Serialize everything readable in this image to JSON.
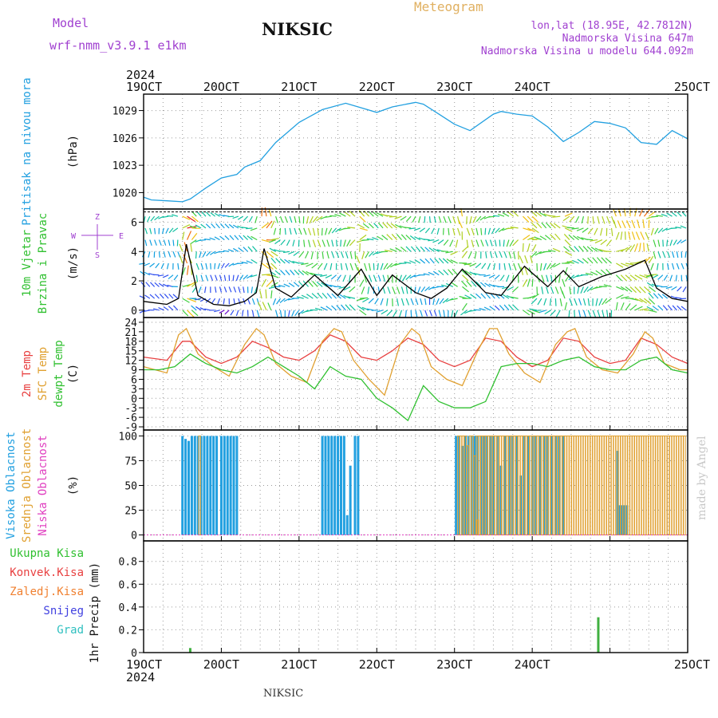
{
  "header": {
    "model_label": "Model",
    "model_name": "wrf-nmm_v3.9.1 e1km",
    "station": "NIKSIC",
    "meteogram": "Meteogram",
    "coords": "lon,lat (18.95E, 42.7812N)",
    "elevation": "Nadmorska Visina 647m",
    "model_elevation": "Nadmorska Visina u modelu 644.092m"
  },
  "footer": {
    "station": "NIKSIC",
    "credit": "made by Angel"
  },
  "colors": {
    "pressure": "#22a0e0",
    "t2m": "#e84040",
    "sfc": "#e0a030",
    "dew": "#30c030",
    "high_cloud": "#22a0e0",
    "mid_cloud": "#e0a030",
    "low_cloud": "#e040c0",
    "rain": "#40b040",
    "wind_speed": "#000000"
  },
  "time_axis": {
    "year": "2024",
    "days": [
      "19OCT",
      "20OCT",
      "21OCT",
      "22OCT",
      "23OCT",
      "24OCT",
      "25OCT"
    ]
  },
  "chart_data": [
    {
      "type": "line",
      "panel": "pressure",
      "ylabel_lines": [
        "Pritisak na nivou mora"
      ],
      "unit": "(hPa)",
      "x_unit": "days since 19OCT 00",
      "yticks": [
        1020,
        1023,
        1026,
        1029
      ],
      "ylim": [
        1018.2,
        1030.8
      ],
      "grid": true,
      "series": [
        {
          "name": "Pritisak na nivou mora",
          "x": [
            0,
            0.1,
            0.3,
            0.5,
            0.6,
            0.8,
            1.0,
            1.2,
            1.3,
            1.5,
            1.7,
            2.0,
            2.3,
            2.6,
            2.8,
            3.0,
            3.2,
            3.5,
            3.6,
            3.8,
            4.0,
            4.2,
            4.5,
            4.6,
            4.8,
            5.0,
            5.2,
            5.4,
            5.6,
            5.8,
            6.0,
            6.2,
            6.4,
            6.6,
            6.8,
            7.0
          ],
          "y": [
            1019.5,
            1019.2,
            1019.1,
            1019.0,
            1019.3,
            1020.5,
            1021.6,
            1022.0,
            1022.8,
            1023.5,
            1025.5,
            1027.7,
            1029.1,
            1029.8,
            1029.3,
            1028.8,
            1029.4,
            1029.9,
            1029.7,
            1028.6,
            1027.5,
            1026.8,
            1028.6,
            1028.9,
            1028.6,
            1028.4,
            1027.2,
            1025.6,
            1026.6,
            1027.8,
            1027.6,
            1027.1,
            1025.5,
            1025.3,
            1026.8,
            1025.9
          ]
        }
      ]
    },
    {
      "type": "line",
      "panel": "wind",
      "ylabel_lines": [
        "10m Vjetar",
        "Brzina i Pravac"
      ],
      "unit": "(m/s)",
      "compass": [
        "Z",
        "W",
        "E",
        "S"
      ],
      "yticks": [
        0,
        2,
        4,
        6
      ],
      "ylim": [
        -0.5,
        6.9
      ],
      "grid": true,
      "series": [
        {
          "name": "Brzina",
          "x": [
            0,
            0.3,
            0.45,
            0.55,
            0.7,
            0.9,
            1.1,
            1.3,
            1.45,
            1.55,
            1.7,
            1.9,
            2.2,
            2.5,
            2.8,
            3.0,
            3.2,
            3.5,
            3.7,
            3.9,
            4.1,
            4.4,
            4.6,
            4.9,
            5.2,
            5.4,
            5.6,
            5.9,
            6.2,
            6.45,
            6.6,
            6.8,
            7.0
          ],
          "y": [
            0.6,
            0.4,
            0.8,
            4.5,
            1.0,
            0.4,
            0.3,
            0.6,
            1.2,
            4.2,
            1.5,
            0.9,
            2.4,
            1.0,
            2.8,
            1.0,
            2.4,
            1.2,
            0.8,
            1.5,
            2.8,
            1.2,
            1.0,
            3.0,
            1.6,
            2.7,
            1.6,
            2.3,
            2.8,
            3.4,
            1.5,
            0.8,
            0.6
          ]
        }
      ]
    },
    {
      "type": "line",
      "panel": "temperature",
      "ylabel_lines": [
        "2m Temp",
        "SFC Temp",
        "dewpt Temp"
      ],
      "unit": "(C)",
      "yticks": [
        -9,
        -6,
        -3,
        0,
        3,
        6,
        9,
        12,
        15,
        18,
        21,
        24
      ],
      "ylim": [
        -10,
        25.5
      ],
      "grid": true,
      "series": [
        {
          "name": "2m Temp",
          "x": [
            0,
            0.3,
            0.5,
            0.6,
            0.8,
            1.0,
            1.2,
            1.4,
            1.6,
            1.8,
            2.0,
            2.2,
            2.4,
            2.6,
            2.8,
            3.0,
            3.2,
            3.4,
            3.6,
            3.8,
            4.0,
            4.2,
            4.4,
            4.6,
            4.8,
            5.0,
            5.2,
            5.4,
            5.6,
            5.8,
            6.0,
            6.2,
            6.4,
            6.6,
            6.8,
            7.0
          ],
          "y": [
            13,
            12,
            18,
            18,
            13,
            11,
            13,
            18,
            16,
            13,
            12,
            15,
            20,
            18,
            13,
            12,
            15,
            19,
            17,
            12,
            10,
            12,
            19,
            18,
            13,
            10,
            12,
            19,
            18,
            13,
            11,
            12,
            19,
            17,
            13,
            11
          ]
        },
        {
          "name": "SFC Temp",
          "x": [
            0,
            0.3,
            0.45,
            0.55,
            0.7,
            0.9,
            1.1,
            1.3,
            1.45,
            1.55,
            1.7,
            1.9,
            2.1,
            2.3,
            2.45,
            2.55,
            2.7,
            2.9,
            3.1,
            3.3,
            3.45,
            3.55,
            3.7,
            3.9,
            4.1,
            4.3,
            4.45,
            4.55,
            4.7,
            4.9,
            5.1,
            5.3,
            5.45,
            5.55,
            5.7,
            5.9,
            6.1,
            6.3,
            6.45,
            6.55,
            6.7,
            6.9,
            7.0
          ],
          "y": [
            10,
            8,
            20,
            22,
            14,
            10,
            7,
            17,
            22,
            20,
            11,
            7,
            5,
            18,
            22,
            21,
            12,
            6,
            1,
            17,
            22,
            20,
            10,
            6,
            4,
            15,
            22,
            22,
            14,
            8,
            5,
            17,
            21,
            22,
            13,
            9,
            8,
            14,
            21,
            19,
            11,
            9,
            9
          ]
        },
        {
          "name": "dewpt Temp",
          "x": [
            0,
            0.2,
            0.4,
            0.6,
            0.8,
            1.0,
            1.2,
            1.4,
            1.6,
            1.8,
            2.0,
            2.2,
            2.4,
            2.6,
            2.8,
            3.0,
            3.2,
            3.4,
            3.6,
            3.8,
            4.0,
            4.2,
            4.4,
            4.6,
            4.8,
            5.0,
            5.2,
            5.4,
            5.6,
            5.8,
            6.0,
            6.2,
            6.4,
            6.6,
            6.8,
            7.0
          ],
          "y": [
            9,
            9,
            10,
            14,
            11,
            9,
            8,
            10,
            13,
            10,
            7,
            3,
            10,
            7,
            6,
            0,
            -3,
            -7,
            4,
            -1,
            -3,
            -3,
            -1,
            10,
            11,
            11,
            10,
            12,
            13,
            10,
            9,
            9,
            12,
            13,
            9,
            8
          ]
        }
      ]
    },
    {
      "type": "bar",
      "panel": "clouds",
      "ylabel_lines": [
        "Visoka Oblacnost",
        "Srednja Oblacnost",
        "Niska Oblacnost"
      ],
      "unit": "(%)",
      "yticks": [
        0,
        25,
        50,
        75,
        100
      ],
      "ylim": [
        -6,
        106
      ],
      "grid": true,
      "series": [
        {
          "name": "Visoka Oblacnost",
          "x": [
            0.5,
            0.54,
            0.58,
            0.62,
            0.66,
            0.7,
            0.74,
            0.78,
            0.82,
            0.86,
            0.9,
            0.94,
            1.0,
            1.04,
            1.08,
            1.12,
            1.16,
            1.2,
            2.3,
            2.34,
            2.38,
            2.42,
            2.46,
            2.5,
            2.54,
            2.58,
            2.62,
            2.66,
            2.72,
            2.76,
            4.02,
            4.06,
            4.1,
            4.14,
            4.18,
            4.22,
            4.26,
            4.3,
            4.34,
            4.38,
            4.42,
            4.46,
            4.5,
            4.55,
            4.6,
            4.65,
            4.7,
            4.75,
            4.8,
            4.85,
            4.9,
            4.95,
            5.0,
            5.05,
            5.1,
            5.15,
            5.2,
            5.25,
            5.3,
            5.35,
            5.4,
            6.1,
            6.12,
            6.15,
            6.18,
            6.22
          ],
          "values": [
            100,
            97,
            95,
            100,
            100,
            100,
            100,
            100,
            100,
            100,
            100,
            100,
            100,
            100,
            100,
            100,
            100,
            100,
            100,
            100,
            100,
            100,
            100,
            100,
            100,
            100,
            20,
            70,
            100,
            100,
            100,
            100,
            90,
            100,
            100,
            100,
            100,
            100,
            100,
            100,
            100,
            100,
            100,
            100,
            70,
            100,
            100,
            100,
            100,
            60,
            100,
            100,
            100,
            100,
            100,
            100,
            100,
            100,
            100,
            100,
            100,
            85,
            30,
            30,
            30,
            30
          ]
        },
        {
          "name": "Srednja Oblacnost",
          "x": [
            0.72,
            4.3,
            4.05,
            4.08,
            4.11,
            4.14,
            4.17,
            4.2,
            4.23,
            4.26,
            4.29,
            4.32,
            4.35,
            4.38,
            4.41,
            4.44,
            4.47,
            4.5,
            4.53,
            4.56,
            4.59,
            4.62,
            4.65,
            4.68,
            4.71,
            4.74,
            4.77,
            4.8,
            4.83,
            4.86,
            4.89,
            4.92,
            4.95,
            4.98,
            5.01,
            5.04,
            5.07,
            5.1,
            5.13,
            5.16,
            5.19,
            5.22,
            5.25,
            5.28,
            5.31,
            5.34,
            5.37,
            5.4,
            5.43,
            5.46,
            5.49,
            5.52,
            5.55,
            5.58,
            5.61,
            5.64,
            5.67,
            5.7,
            5.73,
            5.76,
            5.79,
            5.82,
            5.85,
            5.88,
            5.91,
            5.94,
            5.97,
            6.0,
            6.03,
            6.06,
            6.09,
            6.12,
            6.15,
            6.18,
            6.21,
            6.24,
            6.27,
            6.3,
            6.33,
            6.36,
            6.39,
            6.42,
            6.45,
            6.48,
            6.51,
            6.54,
            6.57,
            6.6,
            6.63,
            6.66,
            6.69,
            6.72,
            6.75,
            6.78,
            6.81,
            6.84,
            6.87,
            6.9,
            6.93,
            6.96
          ],
          "values": [
            100,
            15,
            100,
            100,
            100,
            100,
            90,
            100,
            100,
            80,
            100,
            100,
            100,
            100,
            100,
            100,
            100,
            100,
            100,
            100,
            100,
            100,
            100,
            100,
            100,
            100,
            100,
            100,
            100,
            100,
            100,
            100,
            100,
            100,
            100,
            100,
            100,
            100,
            100,
            100,
            100,
            100,
            100,
            100,
            100,
            100,
            100,
            100,
            100,
            100,
            100,
            100,
            100,
            100,
            100,
            100,
            100,
            100,
            100,
            100,
            100,
            100,
            100,
            100,
            100,
            100,
            100,
            100,
            100,
            100,
            100,
            100,
            100,
            100,
            100,
            100,
            100,
            100,
            100,
            100,
            100,
            100,
            100,
            100,
            100,
            100,
            100,
            100,
            100,
            100,
            100,
            100,
            100,
            100,
            100,
            100,
            100,
            100,
            100,
            100
          ]
        }
      ]
    },
    {
      "type": "bar",
      "panel": "precip",
      "ylabel_lines": [
        "Ukupna Kisa",
        "Konvek.Kisa",
        "Zaledj.Kisa",
        "Snijeg",
        "Grad"
      ],
      "unit": "1hr Precip (mm)",
      "yticks": [
        0,
        0.2,
        0.4,
        0.6,
        0.8
      ],
      "ylim": [
        0,
        0.98
      ],
      "grid": true,
      "series": [
        {
          "name": "Ukupna Kisa",
          "x": [
            0.6,
            5.85
          ],
          "values": [
            0.04,
            0.31
          ]
        }
      ]
    }
  ]
}
